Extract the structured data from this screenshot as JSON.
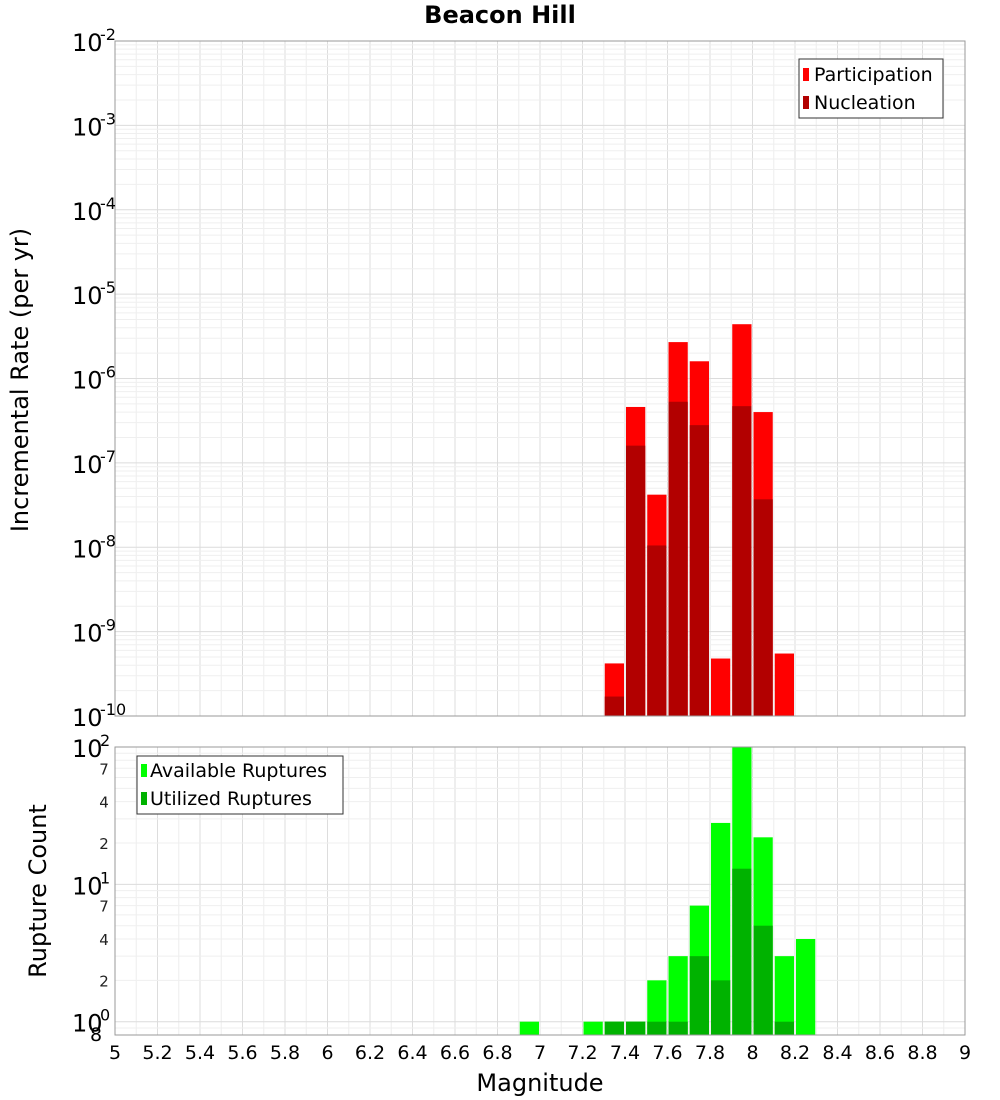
{
  "chart_data": [
    {
      "type": "bar",
      "title": "Beacon Hill",
      "xlabel": "",
      "ylabel": "Incremental Rate (per yr)",
      "yscale": "log",
      "ylim": [
        1e-10,
        0.01
      ],
      "xlim": [
        5,
        9
      ],
      "bin_width": 0.1,
      "legend_position": "top-right",
      "y_tick_labels": [
        {
          "base": "10",
          "exp": "-10"
        },
        {
          "base": "10",
          "exp": "-9"
        },
        {
          "base": "10",
          "exp": "-8"
        },
        {
          "base": "10",
          "exp": "-7"
        },
        {
          "base": "10",
          "exp": "-6"
        },
        {
          "base": "10",
          "exp": "-5"
        },
        {
          "base": "10",
          "exp": "-4"
        },
        {
          "base": "10",
          "exp": "-3"
        },
        {
          "base": "10",
          "exp": "-2"
        }
      ],
      "x": [
        7.35,
        7.45,
        7.55,
        7.65,
        7.75,
        7.85,
        7.95,
        8.05,
        8.15
      ],
      "series": [
        {
          "name": "Participation",
          "color": "#ff0000",
          "values": [
            4.2e-10,
            4.6e-07,
            4.2e-08,
            2.7e-06,
            1.6e-06,
            4.8e-10,
            4.4e-06,
            4e-07,
            5.5e-10
          ]
        },
        {
          "name": "Nucleation",
          "color": "#b20000",
          "values": [
            1.7e-10,
            1.6e-07,
            1.05e-08,
            5.3e-07,
            2.8e-07,
            null,
            4.7e-07,
            3.7e-08,
            null
          ]
        }
      ]
    },
    {
      "type": "bar",
      "title": "",
      "xlabel": "Magnitude",
      "ylabel": "Rupture Count",
      "yscale": "log",
      "ylim": [
        0.8,
        100
      ],
      "xlim": [
        5,
        9
      ],
      "bin_width": 0.1,
      "legend_position": "top-left",
      "y_major_ticks": [
        {
          "value": 1,
          "base": "10",
          "exp": "0"
        },
        {
          "value": 10,
          "base": "10",
          "exp": "1"
        },
        {
          "value": 100,
          "base": "10",
          "exp": "2"
        }
      ],
      "y_minor_ticks": [
        {
          "value": 0.8,
          "label": "8"
        },
        {
          "value": 2,
          "label": "2"
        },
        {
          "value": 4,
          "label": "4"
        },
        {
          "value": 7,
          "label": "7"
        },
        {
          "value": 20,
          "label": "2"
        },
        {
          "value": 40,
          "label": "4"
        },
        {
          "value": 70,
          "label": "7"
        }
      ],
      "x_tick_labels": [
        "5",
        "5.2",
        "5.4",
        "5.6",
        "5.8",
        "6",
        "6.2",
        "6.4",
        "6.6",
        "6.8",
        "7",
        "7.2",
        "7.4",
        "7.6",
        "7.8",
        "8",
        "8.2",
        "8.4",
        "8.6",
        "8.8",
        "9"
      ],
      "x": [
        6.95,
        7.25,
        7.35,
        7.45,
        7.55,
        7.65,
        7.75,
        7.85,
        7.95,
        8.05,
        8.15,
        8.25
      ],
      "series": [
        {
          "name": "Available Ruptures",
          "color": "#00ff00",
          "values": [
            1,
            1,
            1,
            1,
            2,
            3,
            7,
            28,
            100,
            22,
            3,
            4
          ]
        },
        {
          "name": "Utilized Ruptures",
          "color": "#00b200",
          "values": [
            null,
            null,
            1,
            1,
            1,
            1,
            3,
            2,
            13,
            5,
            1,
            null
          ]
        }
      ]
    }
  ]
}
